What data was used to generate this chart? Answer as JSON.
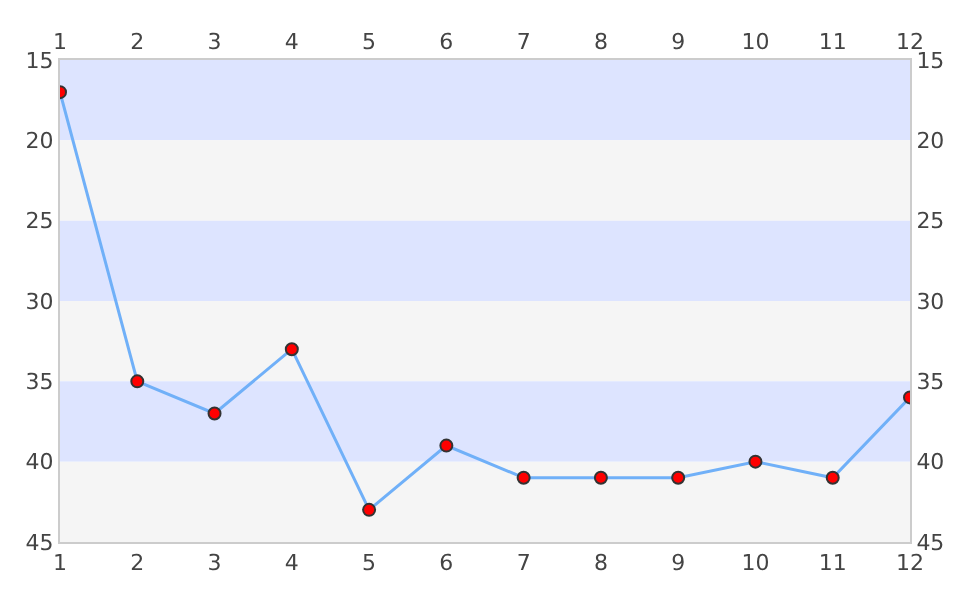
{
  "chart_data": {
    "type": "line",
    "x": [
      1,
      2,
      3,
      4,
      5,
      6,
      7,
      8,
      9,
      10,
      11,
      12
    ],
    "series": [
      {
        "color": "#70b0f8",
        "values": [
          17,
          35,
          37,
          33,
          43,
          39,
          41,
          41,
          41,
          40,
          41,
          36
        ]
      }
    ],
    "marker": "circle",
    "line_style": "solid",
    "xlim": [
      1,
      12
    ],
    "xticks": [
      1,
      2,
      3,
      4,
      5,
      6,
      7,
      8,
      9,
      10,
      11,
      12
    ],
    "x2lim": [
      1,
      12
    ],
    "x2ticks": [
      1,
      2,
      3,
      4,
      5,
      6,
      7,
      8,
      9,
      10,
      11,
      12
    ],
    "ylim": [
      45,
      15
    ],
    "yticks": [
      15,
      20,
      25,
      30,
      35,
      40,
      45
    ],
    "y2lim": [
      45,
      15
    ],
    "y2ticks": [
      15,
      20,
      25,
      30,
      35,
      40,
      45
    ],
    "bands": [
      {
        "axis": "y",
        "from": 15,
        "to": 20,
        "color": "#dde4ff"
      },
      {
        "axis": "y",
        "from": 20,
        "to": 25,
        "color": "#f5f5f5"
      },
      {
        "axis": "y",
        "from": 25,
        "to": 30,
        "color": "#dde4ff"
      },
      {
        "axis": "y",
        "from": 30,
        "to": 35,
        "color": "#f5f5f5"
      },
      {
        "axis": "y",
        "from": 35,
        "to": 40,
        "color": "#dde4ff"
      },
      {
        "axis": "y",
        "from": 40,
        "to": 45,
        "color": "#f5f5f5"
      }
    ]
  }
}
